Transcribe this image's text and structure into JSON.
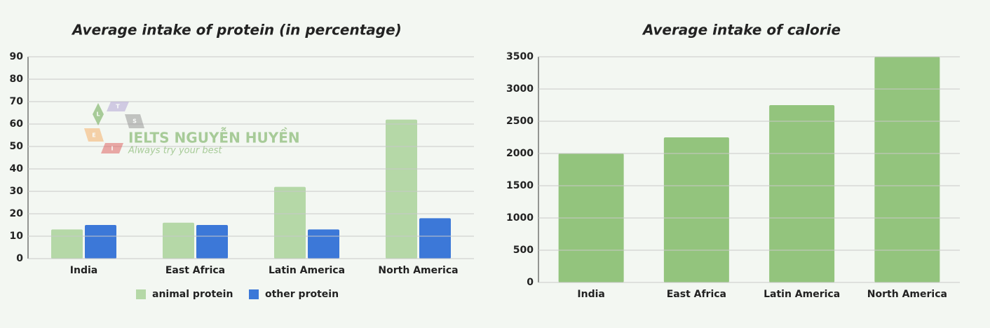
{
  "chart_data": [
    {
      "type": "bar",
      "title": "Average intake of protein (in percentage)",
      "categories": [
        "India",
        "East Africa",
        "Latin America",
        "North America"
      ],
      "series": [
        {
          "name": "animal protein",
          "color": "#b5d8a7",
          "values": [
            13,
            16,
            32,
            62
          ]
        },
        {
          "name": "other protein",
          "color": "#3c78d8",
          "values": [
            15,
            15,
            13,
            18
          ]
        }
      ],
      "ylim": [
        0,
        90
      ],
      "yticks": [
        0,
        10,
        20,
        30,
        40,
        50,
        60,
        70,
        80,
        90
      ],
      "grid": true,
      "legend": "bottom"
    },
    {
      "type": "bar",
      "title": "Average intake of calorie",
      "categories": [
        "India",
        "East Africa",
        "Latin America",
        "North America"
      ],
      "values": [
        2000,
        2250,
        2750,
        3500
      ],
      "color": "#93c47d",
      "ylim": [
        0,
        3500
      ],
      "yticks": [
        0,
        500,
        1000,
        1500,
        2000,
        2500,
        3000,
        3500
      ],
      "grid": true
    }
  ],
  "watermark": {
    "title": "IELTS NGUYỄN HUYỀN",
    "subtitle": "Always try your best",
    "letters": [
      "L",
      "T",
      "S",
      "E",
      "I"
    ]
  }
}
